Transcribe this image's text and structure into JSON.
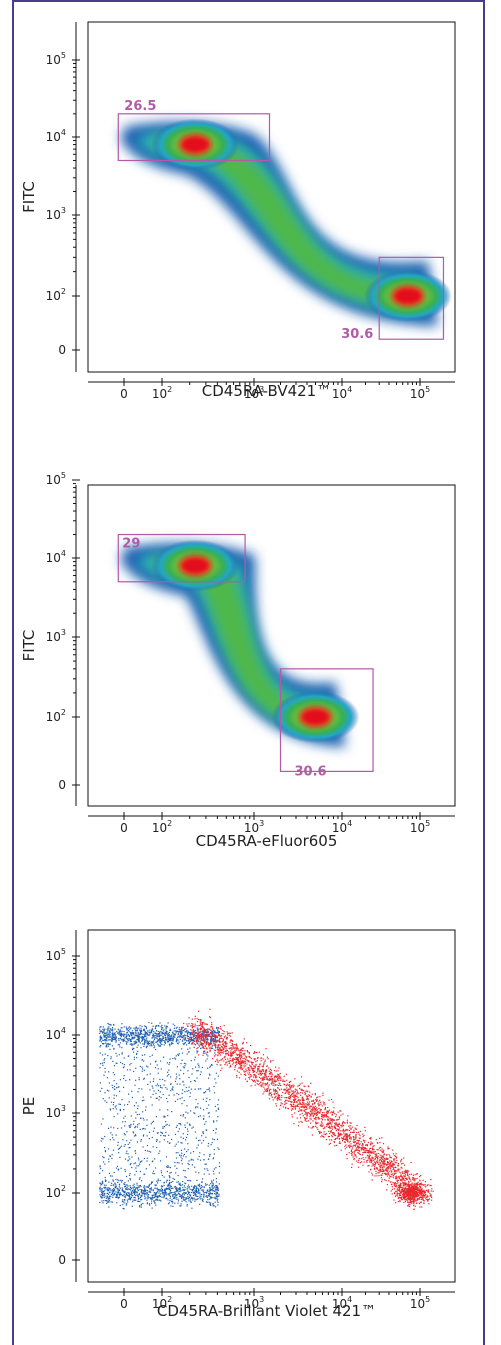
{
  "chart_data": [
    {
      "type": "scatter",
      "subtype": "density-pseudocolor",
      "xlabel": "CD45RA-BV421™",
      "ylabel": "FITC",
      "x_ticks": [
        "0",
        "10^2",
        "10^3",
        "10^4",
        "10^5"
      ],
      "y_ticks": [
        "0",
        "10^2",
        "10^3",
        "10^4",
        "10^5"
      ],
      "scale": "biexponential",
      "populations": [
        {
          "center_x": 230,
          "center_y": 8000,
          "peak": "high"
        },
        {
          "center_x": 70000,
          "center_y": 100,
          "peak": "high"
        }
      ],
      "gates": [
        {
          "label": "26.5",
          "x_range": [
            -30,
            1500
          ],
          "y_range": [
            5000,
            20000
          ]
        },
        {
          "label": "30.6",
          "x_range": [
            30000,
            200000
          ],
          "y_range": [
            20,
            300
          ]
        }
      ]
    },
    {
      "type": "scatter",
      "subtype": "density-pseudocolor",
      "xlabel": "CD45RA-eFluor605",
      "ylabel": "FITC",
      "x_ticks": [
        "0",
        "10^2",
        "10^3",
        "10^4",
        "10^5"
      ],
      "y_ticks": [
        "0",
        "10^2",
        "10^3",
        "10^4",
        "10^5"
      ],
      "scale": "biexponential",
      "populations": [
        {
          "center_x": 230,
          "center_y": 8000,
          "peak": "high"
        },
        {
          "center_x": 5000,
          "center_y": 100,
          "peak": "high"
        }
      ],
      "gates": [
        {
          "label": "29",
          "x_range": [
            -30,
            800
          ],
          "y_range": [
            5000,
            20000
          ]
        },
        {
          "label": "30.6",
          "x_range": [
            2000,
            25000
          ],
          "y_range": [
            20,
            400
          ]
        }
      ]
    },
    {
      "type": "scatter",
      "subtype": "dot-plot",
      "xlabel": "CD45RA-Brilliant Violet 421™",
      "ylabel": "PE",
      "x_ticks": [
        "0",
        "10^2",
        "10^3",
        "10^4",
        "10^5"
      ],
      "y_ticks": [
        "0",
        "10^2",
        "10^3",
        "10^4",
        "10^5"
      ],
      "scale": "biexponential",
      "series": [
        {
          "color": "#1f5fb0",
          "populations": [
            {
              "x": 80,
              "y": 10000
            },
            {
              "x": 80,
              "y": 100
            }
          ]
        },
        {
          "color": "#e8262c",
          "populations": [
            {
              "x": 1000,
              "y": 5000
            },
            {
              "x": 80000,
              "y": 100
            }
          ]
        }
      ]
    }
  ],
  "colors": {
    "frame": "#4b3b8c",
    "gate": "#b25aa8",
    "blue": "#1f5fb0",
    "red": "#e8262c"
  }
}
